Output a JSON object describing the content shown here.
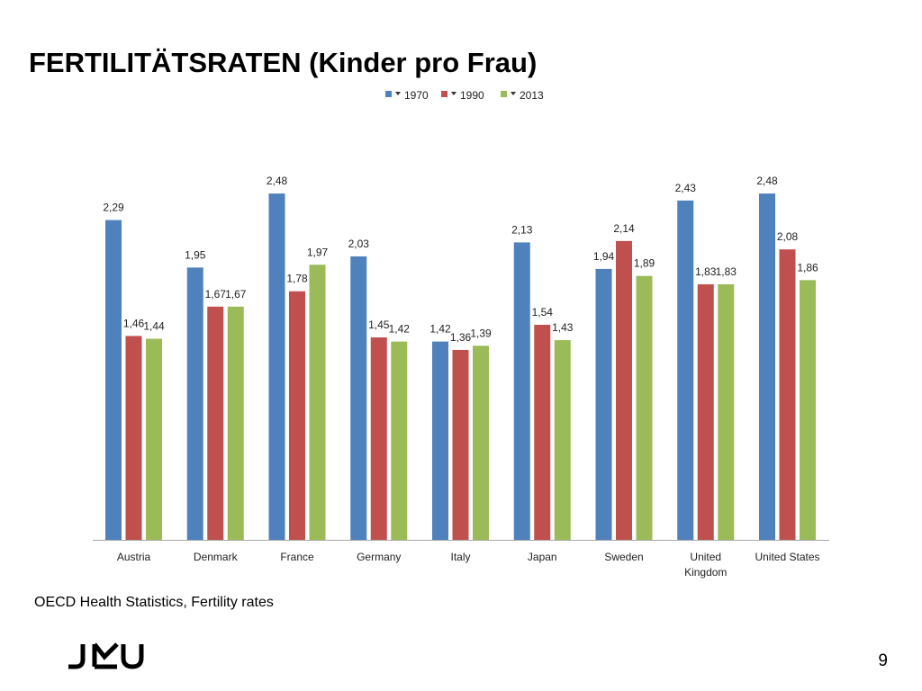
{
  "chart_data": {
    "type": "bar",
    "title": "FERTILITÄTSRATEN (Kinder pro Frau)",
    "source": "OECD Health Statistics, Fertility rates",
    "page_number": "9",
    "categories": [
      "Austria",
      "Denmark",
      "France",
      "Germany",
      "Italy",
      "Japan",
      "Sweden",
      "United Kingdom",
      "United States"
    ],
    "series": [
      {
        "name": "1970",
        "color": "#4f81bd",
        "values": [
          2.29,
          1.95,
          2.48,
          2.03,
          1.42,
          2.13,
          1.94,
          2.43,
          2.48
        ],
        "value_labels": [
          "2,29",
          "1,95",
          "2,48",
          "2,03",
          "1,42",
          "2,13",
          "1,94",
          "2,43",
          "2,48"
        ]
      },
      {
        "name": "1990",
        "color": "#c0504d",
        "values": [
          1.46,
          1.67,
          1.78,
          1.45,
          1.36,
          1.54,
          2.14,
          1.83,
          2.08
        ],
        "value_labels": [
          "1,46",
          "1,67",
          "1,78",
          "1,45",
          "1,36",
          "1,54",
          "2,14",
          "1,83",
          "2,08"
        ]
      },
      {
        "name": "2013",
        "color": "#9bbb59",
        "values": [
          1.44,
          1.67,
          1.97,
          1.42,
          1.39,
          1.43,
          1.89,
          1.83,
          1.86
        ],
        "value_labels": [
          "1,44",
          "1,67",
          "1,97",
          "1,42",
          "1,39",
          "1,43",
          "1,89",
          "1,83",
          "1,86"
        ]
      }
    ],
    "legend": "top"
  }
}
